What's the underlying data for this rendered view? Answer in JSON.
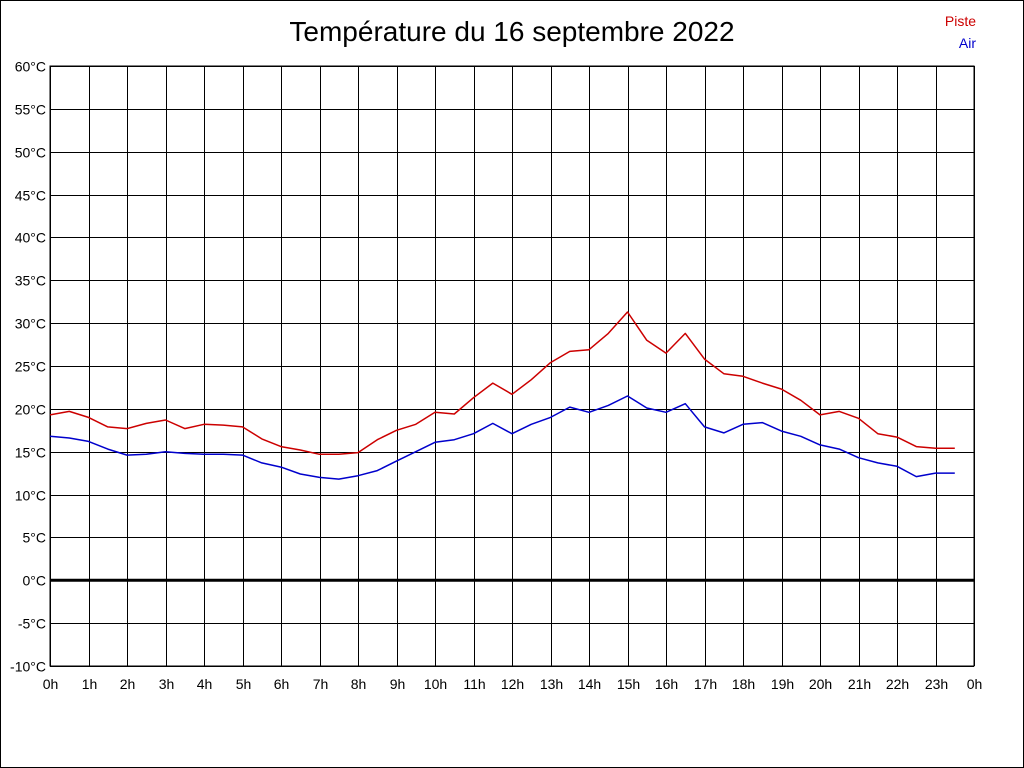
{
  "chart_data": {
    "type": "line",
    "title": "Température du 16 septembre 2022",
    "xlabel": "",
    "ylabel": "",
    "ylim": [
      -10,
      60
    ],
    "xlim": [
      0,
      24
    ],
    "grid": true,
    "legend_position": "top-right",
    "y_ticks": [
      "60°C",
      "55°C",
      "50°C",
      "45°C",
      "40°C",
      "35°C",
      "30°C",
      "25°C",
      "20°C",
      "15°C",
      "10°C",
      "5°C",
      "0°C",
      "-5°C",
      "-10°C"
    ],
    "x_ticks": [
      "0h",
      "1h",
      "2h",
      "3h",
      "4h",
      "5h",
      "6h",
      "7h",
      "8h",
      "9h",
      "10h",
      "11h",
      "12h",
      "13h",
      "14h",
      "15h",
      "16h",
      "17h",
      "18h",
      "19h",
      "20h",
      "21h",
      "22h",
      "23h",
      "0h"
    ],
    "x": [
      0,
      0.5,
      1,
      1.5,
      2,
      2.5,
      3,
      3.5,
      4,
      4.5,
      5,
      5.5,
      6,
      6.5,
      7,
      7.5,
      8,
      8.5,
      9,
      9.5,
      10,
      10.5,
      11,
      11.5,
      12,
      12.5,
      13,
      13.5,
      14,
      14.5,
      15,
      15.5,
      16,
      16.5,
      17,
      17.5,
      18,
      18.5,
      19,
      19.5,
      20,
      20.5,
      21,
      21.5,
      22,
      22.5,
      23,
      23.5
    ],
    "series": [
      {
        "name": "Piste",
        "color": "#cc0000",
        "values": [
          19.3,
          19.7,
          19.0,
          17.9,
          17.7,
          18.3,
          18.7,
          17.7,
          18.2,
          18.1,
          17.9,
          16.5,
          15.6,
          15.2,
          14.7,
          14.7,
          14.9,
          16.4,
          17.5,
          18.2,
          19.6,
          19.4,
          21.3,
          23.0,
          21.7,
          23.4,
          25.4,
          26.7,
          26.9,
          28.8,
          31.3,
          28.0,
          26.5,
          28.8,
          25.8,
          24.1,
          23.8,
          23.0,
          22.3,
          21.0,
          19.3,
          19.7,
          18.9,
          17.1,
          16.7,
          15.6,
          15.4,
          15.4
        ]
      },
      {
        "name": "Air",
        "color": "#0000cc",
        "values": [
          16.8,
          16.6,
          16.2,
          15.3,
          14.6,
          14.7,
          15.0,
          14.8,
          14.7,
          14.7,
          14.6,
          13.7,
          13.2,
          12.4,
          12.0,
          11.8,
          12.2,
          12.8,
          13.9,
          15.0,
          16.1,
          16.4,
          17.1,
          18.3,
          17.1,
          18.2,
          19.0,
          20.2,
          19.6,
          20.4,
          21.5,
          20.1,
          19.6,
          20.6,
          17.9,
          17.2,
          18.2,
          18.4,
          17.4,
          16.8,
          15.8,
          15.3,
          14.3,
          13.7,
          13.3,
          12.1,
          12.5,
          12.5
        ]
      }
    ]
  }
}
